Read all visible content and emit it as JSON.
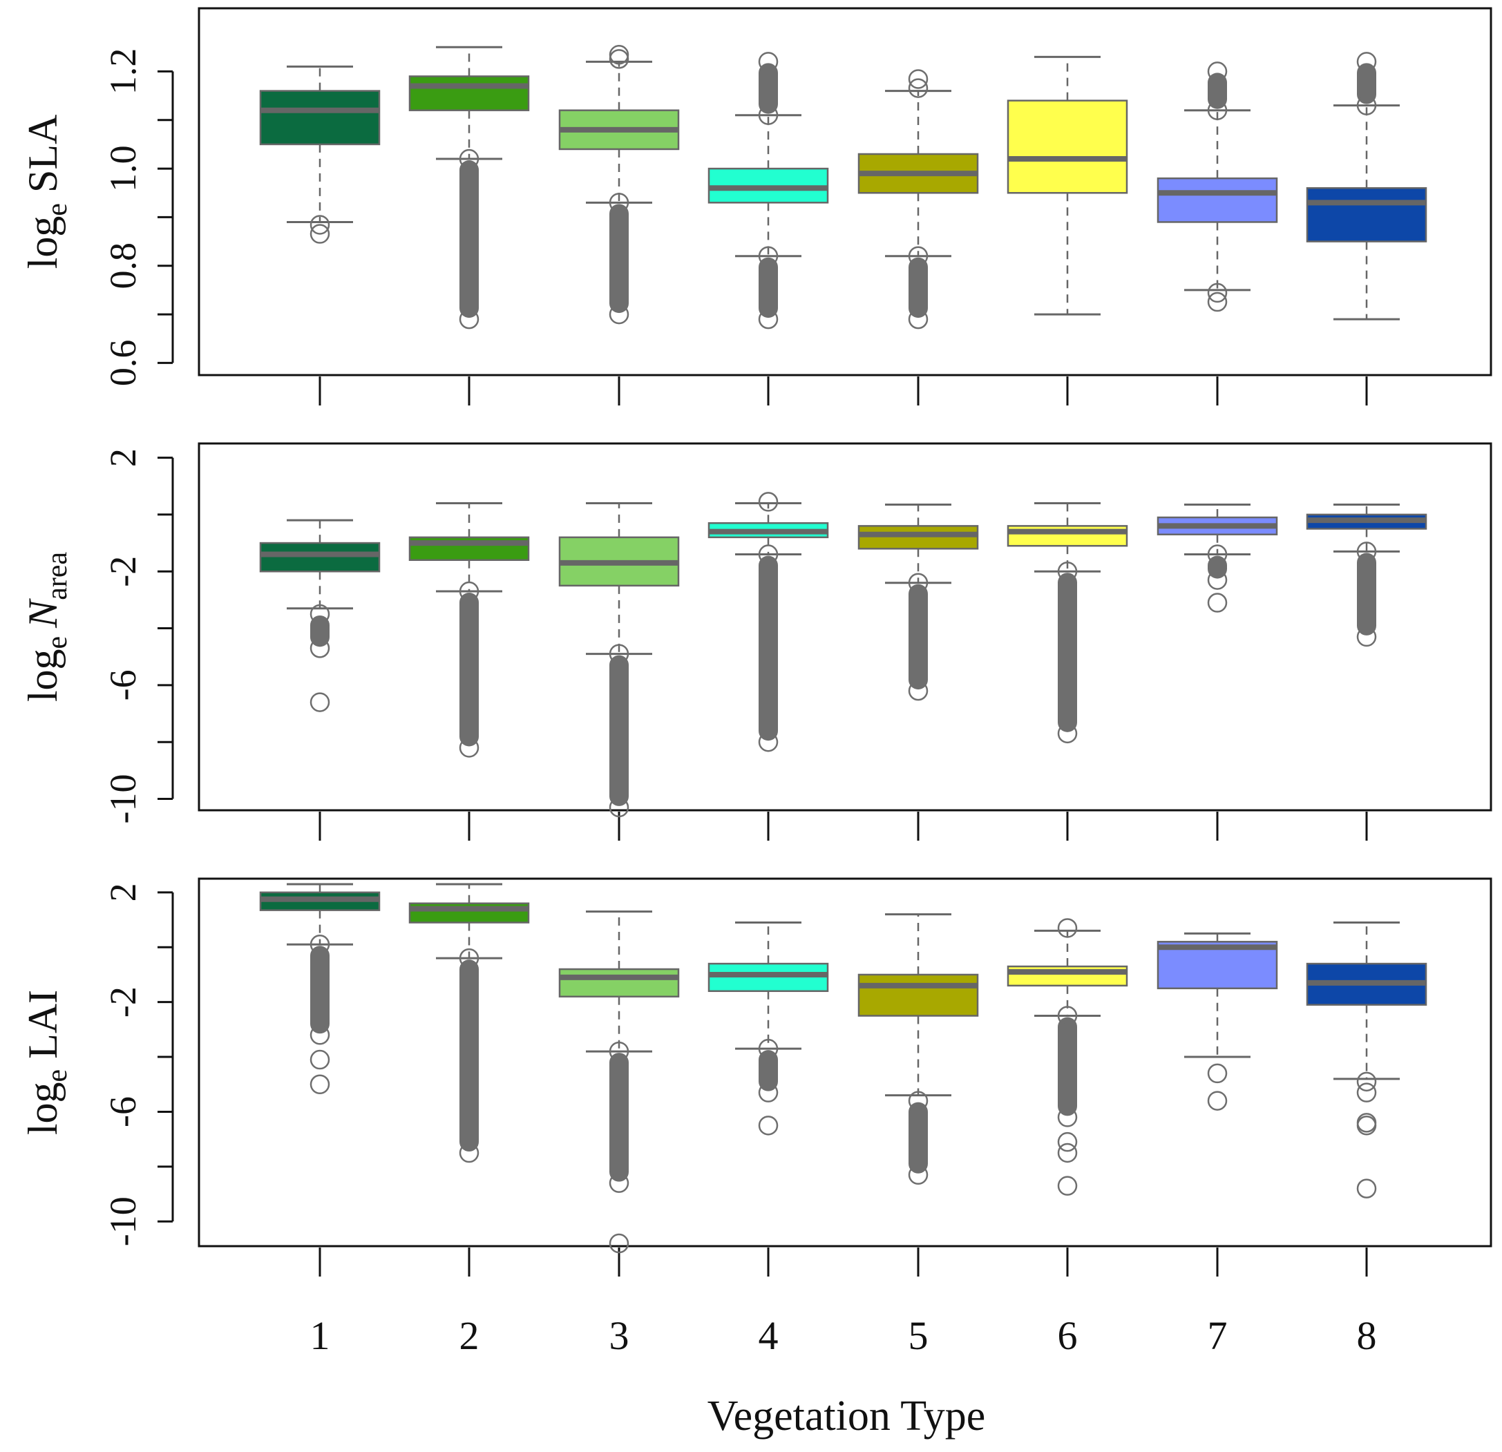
{
  "chart_data": {
    "type": "boxplot",
    "xlabel": "Vegetation Type",
    "categories": [
      "1",
      "2",
      "3",
      "4",
      "5",
      "6",
      "7",
      "8"
    ],
    "colors": [
      "#0b6b40",
      "#3a9c12",
      "#85d165",
      "#22ffd0",
      "#a8a800",
      "#ffff4d",
      "#7b8cff",
      "#0d47a8"
    ],
    "style": {
      "box_border": "#666666",
      "median": "#666666",
      "whisker": "#666666",
      "outlier": "#6e6e6e"
    },
    "panels": [
      {
        "ylabel_base": "log",
        "ylabel_sub": "e",
        "ylabel_rest": " SLA",
        "ylabel_rest_italic": false,
        "ylim": [
          0.575,
          1.33
        ],
        "yticks": [
          0.6,
          0.8,
          1.0,
          1.2
        ],
        "ytick_labels": [
          "0.6",
          "0.8",
          "1.0",
          "1.2"
        ],
        "boxes": [
          {
            "cat": "1",
            "whislo": 0.89,
            "q1": 1.05,
            "med": 1.12,
            "q3": 1.16,
            "whishi": 1.21,
            "fliers": [
              [
                0.86,
                0.89
              ]
            ]
          },
          {
            "cat": "2",
            "whislo": 1.02,
            "q1": 1.12,
            "med": 1.17,
            "q3": 1.19,
            "whishi": 1.25,
            "fliers": [
              [
                0.69,
                1.02
              ]
            ]
          },
          {
            "cat": "3",
            "whislo": 0.93,
            "q1": 1.04,
            "med": 1.08,
            "q3": 1.12,
            "whishi": 1.22,
            "fliers": [
              [
                0.7,
                0.93
              ],
              [
                1.22,
                1.24
              ]
            ]
          },
          {
            "cat": "4",
            "whislo": 0.82,
            "q1": 0.93,
            "med": 0.96,
            "q3": 1.0,
            "whishi": 1.11,
            "fliers": [
              [
                0.69,
                0.82
              ],
              [
                1.11,
                1.22
              ]
            ]
          },
          {
            "cat": "5",
            "whislo": 0.82,
            "q1": 0.95,
            "med": 0.99,
            "q3": 1.03,
            "whishi": 1.16,
            "fliers": [
              [
                0.69,
                0.82
              ],
              [
                1.16,
                1.19
              ]
            ]
          },
          {
            "cat": "6",
            "whislo": 0.7,
            "q1": 0.95,
            "med": 1.02,
            "q3": 1.14,
            "whishi": 1.23,
            "fliers": []
          },
          {
            "cat": "7",
            "whislo": 0.75,
            "q1": 0.89,
            "med": 0.95,
            "q3": 0.98,
            "whishi": 1.12,
            "fliers": [
              [
                0.72,
                0.75
              ],
              [
                1.12,
                1.2
              ]
            ]
          },
          {
            "cat": "8",
            "whislo": 0.69,
            "q1": 0.85,
            "med": 0.93,
            "q3": 0.96,
            "whishi": 1.13,
            "fliers": [
              [
                1.13,
                1.22
              ]
            ]
          }
        ]
      },
      {
        "ylabel_base": "log",
        "ylabel_sub": "e",
        "ylabel_rest": "N",
        "ylabel_rest_italic": true,
        "ylabel_rest_sub": "area",
        "ylim": [
          -10.4,
          2.5
        ],
        "yticks": [
          -10,
          -6,
          -2,
          2
        ],
        "ytick_labels": [
          "-10",
          "-6",
          "-2",
          "2"
        ],
        "boxes": [
          {
            "cat": "1",
            "whislo": -3.3,
            "q1": -2.0,
            "med": -1.4,
            "q3": -1.0,
            "whishi": -0.2,
            "fliers": [
              [
                -4.7,
                -3.5
              ],
              [
                -6.6,
                -6.6
              ]
            ]
          },
          {
            "cat": "2",
            "whislo": -2.7,
            "q1": -1.6,
            "med": -1.0,
            "q3": -0.8,
            "whishi": 0.4,
            "fliers": [
              [
                -8.2,
                -2.7
              ]
            ]
          },
          {
            "cat": "3",
            "whislo": -4.9,
            "q1": -2.5,
            "med": -1.7,
            "q3": -0.8,
            "whishi": 0.4,
            "fliers": [
              [
                -10.3,
                -4.9
              ]
            ]
          },
          {
            "cat": "4",
            "whislo": -1.4,
            "q1": -0.8,
            "med": -0.6,
            "q3": -0.3,
            "whishi": 0.4,
            "fliers": [
              [
                -8.0,
                -1.4
              ],
              [
                0.45,
                0.45
              ]
            ]
          },
          {
            "cat": "5",
            "whislo": -2.4,
            "q1": -1.2,
            "med": -0.7,
            "q3": -0.4,
            "whishi": 0.35,
            "fliers": [
              [
                -6.2,
                -2.4
              ]
            ]
          },
          {
            "cat": "6",
            "whislo": -2.0,
            "q1": -1.1,
            "med": -0.6,
            "q3": -0.4,
            "whishi": 0.4,
            "fliers": [
              [
                -7.7,
                -2.0
              ]
            ]
          },
          {
            "cat": "7",
            "whislo": -1.4,
            "q1": -0.7,
            "med": -0.4,
            "q3": -0.1,
            "whishi": 0.35,
            "fliers": [
              [
                -2.3,
                -1.4
              ],
              [
                -3.1,
                -3.1
              ]
            ]
          },
          {
            "cat": "8",
            "whislo": -1.3,
            "q1": -0.5,
            "med": -0.2,
            "q3": 0.0,
            "whishi": 0.35,
            "fliers": [
              [
                -4.3,
                -1.3
              ]
            ]
          }
        ]
      },
      {
        "ylabel_base": "log",
        "ylabel_sub": "e",
        "ylabel_rest": " LAI",
        "ylabel_rest_italic": false,
        "ylim": [
          -10.9,
          2.5
        ],
        "yticks": [
          -10,
          -6,
          -2,
          2
        ],
        "ytick_labels": [
          "-10",
          "-6",
          "-2",
          "2"
        ],
        "boxes": [
          {
            "cat": "1",
            "whislo": 0.1,
            "q1": 1.35,
            "med": 1.75,
            "q3": 2.0,
            "whishi": 2.3,
            "fliers": [
              [
                -3.2,
                0.1
              ],
              [
                -4.1,
                -4.1
              ],
              [
                -5.0,
                -5.0
              ]
            ]
          },
          {
            "cat": "2",
            "whislo": -0.4,
            "q1": 0.9,
            "med": 1.4,
            "q3": 1.6,
            "whishi": 2.3,
            "fliers": [
              [
                -7.5,
                -0.4
              ]
            ]
          },
          {
            "cat": "3",
            "whislo": -3.8,
            "q1": -1.8,
            "med": -1.1,
            "q3": -0.8,
            "whishi": 1.3,
            "fliers": [
              [
                -8.6,
                -3.8
              ],
              [
                -10.8,
                -10.8
              ]
            ]
          },
          {
            "cat": "4",
            "whislo": -3.7,
            "q1": -1.6,
            "med": -1.0,
            "q3": -0.6,
            "whishi": 0.9,
            "fliers": [
              [
                -5.3,
                -3.7
              ],
              [
                -6.5,
                -6.5
              ]
            ]
          },
          {
            "cat": "5",
            "whislo": -5.4,
            "q1": -2.5,
            "med": -1.4,
            "q3": -1.0,
            "whishi": 1.2,
            "fliers": [
              [
                -8.3,
                -5.6
              ]
            ]
          },
          {
            "cat": "6",
            "whislo": -2.5,
            "q1": -1.4,
            "med": -0.9,
            "q3": -0.7,
            "whishi": 0.6,
            "fliers": [
              [
                -6.2,
                -2.5
              ],
              [
                -7.6,
                -7.0
              ],
              [
                -8.7,
                -8.7
              ],
              [
                0.7,
                0.7
              ]
            ]
          },
          {
            "cat": "7",
            "whislo": -4.0,
            "q1": -1.5,
            "med": 0.0,
            "q3": 0.2,
            "whishi": 0.5,
            "fliers": [
              [
                -4.6,
                -4.6
              ],
              [
                -5.6,
                -5.6
              ]
            ]
          },
          {
            "cat": "8",
            "whislo": -4.8,
            "q1": -2.1,
            "med": -1.3,
            "q3": -0.6,
            "whishi": 0.9,
            "fliers": [
              [
                -5.4,
                -4.8
              ],
              [
                -6.6,
                -6.3
              ],
              [
                -8.8,
                -8.8
              ]
            ]
          }
        ]
      }
    ]
  }
}
